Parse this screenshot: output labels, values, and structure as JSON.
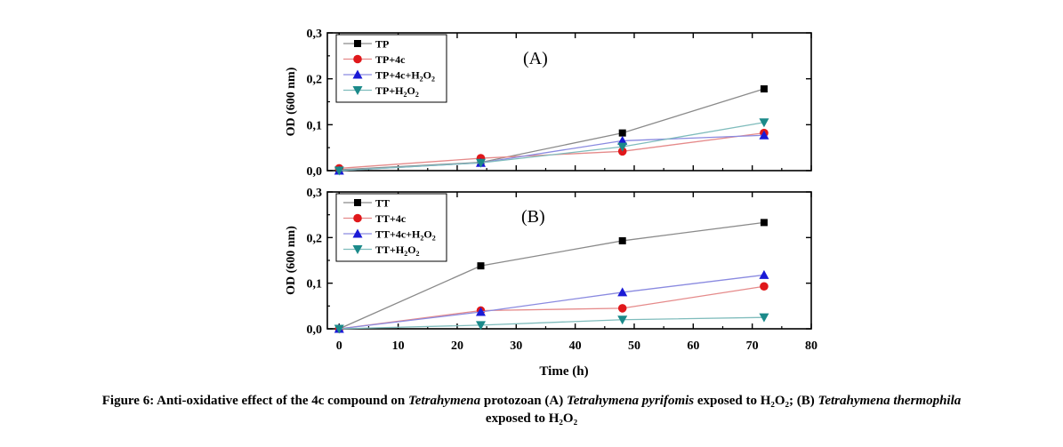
{
  "figure": {
    "caption": {
      "p1": "Figure 6: Anti-oxidative effect of the 4c compound on ",
      "i1": "Tetrahymena",
      "p2": " protozoan (A) ",
      "i2": "Tetrahymena pyrifomis",
      "p3": " exposed to H₂O₂; (B) ",
      "i3": "Tetrahymena thermophila",
      "p4": "exposed to H₂O₂"
    }
  },
  "chart_data": [
    {
      "type": "line",
      "panel_label": "(A)",
      "ylabel": "OD (600 nm)",
      "xlabel": "",
      "x": [
        0,
        24,
        48,
        72
      ],
      "xlim": [
        -2,
        80
      ],
      "ylim": [
        0,
        0.3
      ],
      "x_ticks": [
        "0",
        "10",
        "20",
        "30",
        "40",
        "50",
        "60",
        "70",
        "80"
      ],
      "y_ticks": [
        "0,0",
        "0,1",
        "0,2",
        "0,3"
      ],
      "legend_position": "top-left",
      "series": [
        {
          "name": "TP",
          "label_main": "TP",
          "label_tail": "",
          "marker": "square",
          "color": "#000000",
          "line_color": "#8a8a8a",
          "values": [
            0.002,
            0.018,
            0.082,
            0.178
          ]
        },
        {
          "name": "TP+4c",
          "label_main": "TP+4c",
          "label_tail": "",
          "marker": "circle",
          "color": "#e0181b",
          "line_color": "#e58a8a",
          "values": [
            0.005,
            0.027,
            0.042,
            0.082
          ]
        },
        {
          "name": "TP+4c+H₂O₂",
          "label_main": "TP+4c+H",
          "label_tail": "O",
          "marker": "triangle-up",
          "color": "#1a1ad6",
          "line_color": "#8a8ae0",
          "values": [
            0.0,
            0.017,
            0.065,
            0.077
          ]
        },
        {
          "name": "TP+H₂O₂",
          "label_main": "TP+H",
          "label_tail": "O",
          "marker": "triangle-down",
          "color": "#1b8a8a",
          "line_color": "#7fbcbc",
          "values": [
            0.0,
            0.017,
            0.052,
            0.105
          ]
        }
      ]
    },
    {
      "type": "line",
      "panel_label": "(B)",
      "ylabel": "OD (600 nm)",
      "xlabel": "Time (h)",
      "x": [
        0,
        24,
        48,
        72
      ],
      "xlim": [
        -2,
        80
      ],
      "ylim": [
        0,
        0.3
      ],
      "x_ticks": [
        "0",
        "10",
        "20",
        "30",
        "40",
        "50",
        "60",
        "70",
        "80"
      ],
      "y_ticks": [
        "0,0",
        "0,1",
        "0,2",
        "0,3"
      ],
      "legend_position": "top-left",
      "series": [
        {
          "name": "TT",
          "label_main": "TT",
          "label_tail": "",
          "marker": "square",
          "color": "#000000",
          "line_color": "#8a8a8a",
          "values": [
            0.0,
            0.138,
            0.193,
            0.233
          ]
        },
        {
          "name": "TT+4c",
          "label_main": "TT+4c",
          "label_tail": "",
          "marker": "circle",
          "color": "#e0181b",
          "line_color": "#e58a8a",
          "values": [
            0.0,
            0.04,
            0.045,
            0.093
          ]
        },
        {
          "name": "TT+4c+H₂O₂",
          "label_main": "TT+4c+H",
          "label_tail": "O",
          "marker": "triangle-up",
          "color": "#1a1ad6",
          "line_color": "#8a8ae0",
          "values": [
            0.0,
            0.037,
            0.08,
            0.118
          ]
        },
        {
          "name": "TT+H₂O₂",
          "label_main": "TT+H",
          "label_tail": "O",
          "marker": "triangle-down",
          "color": "#1b8a8a",
          "line_color": "#7fbcbc",
          "values": [
            0.0,
            0.008,
            0.02,
            0.025
          ]
        }
      ]
    }
  ]
}
